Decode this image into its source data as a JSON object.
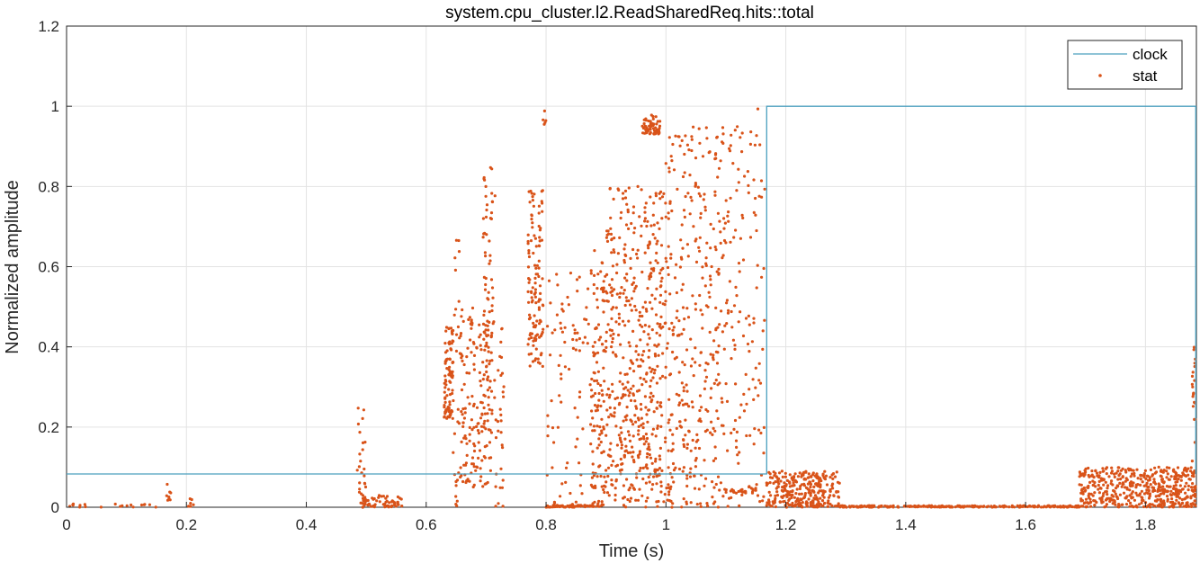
{
  "chart_data": {
    "type": "line+scatter",
    "title": "system.cpu_cluster.l2.ReadSharedReq.hits::total",
    "xlabel": "Time (s)",
    "ylabel": "Normalized amplitude",
    "xlim": [
      0,
      1.885
    ],
    "ylim": [
      0,
      1.2
    ],
    "xticks": [
      "0",
      "0.2",
      "0.4",
      "0.6",
      "0.8",
      "1",
      "1.2",
      "1.4",
      "1.6",
      "1.8"
    ],
    "xtick_values": [
      0,
      0.2,
      0.4,
      0.6,
      0.8,
      1.0,
      1.2,
      1.4,
      1.6,
      1.8
    ],
    "yticks": [
      "0",
      "0.2",
      "0.4",
      "0.6",
      "0.8",
      "1",
      "1.2"
    ],
    "ytick_values": [
      0,
      0.2,
      0.4,
      0.6,
      0.8,
      1.0,
      1.2
    ],
    "grid": true,
    "legend_position": "top-right",
    "series": [
      {
        "name": "clock",
        "style": "line",
        "color": "#4a9fbe",
        "x": [
          0,
          1.168,
          1.168,
          1.884,
          1.884
        ],
        "y": [
          0.083,
          0.083,
          1.0,
          1.0,
          0.083
        ]
      },
      {
        "name": "stat",
        "style": "dots",
        "color": "#d95319",
        "clusters": [
          {
            "x": [
              0.0,
              0.15
            ],
            "y": [
              0.0,
              0.008
            ],
            "n": 20
          },
          {
            "x": [
              0.165,
              0.175
            ],
            "y": [
              0.0,
              0.07
            ],
            "n": 8
          },
          {
            "x": [
              0.2,
              0.215
            ],
            "y": [
              0.0,
              0.04
            ],
            "n": 6
          },
          {
            "x": [
              0.485,
              0.5
            ],
            "y": [
              0.0,
              0.25
            ],
            "n": 25
          },
          {
            "x": [
              0.49,
              0.56
            ],
            "y": [
              0.0,
              0.03
            ],
            "n": 60
          },
          {
            "x": [
              0.63,
              0.645
            ],
            "y": [
              0.22,
              0.45
            ],
            "n": 90
          },
          {
            "x": [
              0.645,
              0.66
            ],
            "y": [
              0.0,
              0.68
            ],
            "n": 40
          },
          {
            "x": [
              0.66,
              0.71
            ],
            "y": [
              0.05,
              0.5
            ],
            "n": 140
          },
          {
            "x": [
              0.695,
              0.715
            ],
            "y": [
              0.15,
              0.85
            ],
            "n": 80
          },
          {
            "x": [
              0.715,
              0.73
            ],
            "y": [
              0.0,
              0.45
            ],
            "n": 30
          },
          {
            "x": [
              0.77,
              0.795
            ],
            "y": [
              0.35,
              0.79
            ],
            "n": 120
          },
          {
            "x": [
              0.795,
              0.8
            ],
            "y": [
              0.95,
              0.99
            ],
            "n": 5
          },
          {
            "x": [
              0.8,
              0.88
            ],
            "y": [
              0.0,
              0.6
            ],
            "n": 90
          },
          {
            "x": [
              0.8,
              0.88
            ],
            "y": [
              0.0,
              0.005
            ],
            "n": 60
          },
          {
            "x": [
              0.875,
              0.9
            ],
            "y": [
              0.0,
              0.65
            ],
            "n": 120
          },
          {
            "x": [
              0.9,
              1.0
            ],
            "y": [
              0.0,
              0.8
            ],
            "n": 500
          },
          {
            "x": [
              0.96,
              0.99
            ],
            "y": [
              0.93,
              0.98
            ],
            "n": 60
          },
          {
            "x": [
              1.0,
              1.09
            ],
            "y": [
              0.0,
              0.95
            ],
            "n": 320
          },
          {
            "x": [
              1.09,
              1.165
            ],
            "y": [
              0.0,
              1.0
            ],
            "n": 160
          },
          {
            "x": [
              1.1,
              1.15
            ],
            "y": [
              0.035,
              0.045
            ],
            "n": 20
          },
          {
            "x": [
              1.168,
              1.29
            ],
            "y": [
              0.0,
              0.09
            ],
            "n": 300
          },
          {
            "x": [
              1.29,
              1.69
            ],
            "y": [
              0.0,
              0.004
            ],
            "n": 250
          },
          {
            "x": [
              1.69,
              1.884
            ],
            "y": [
              0.0,
              0.1
            ],
            "n": 500
          },
          {
            "x": [
              1.878,
              1.884
            ],
            "y": [
              0.0,
              0.4
            ],
            "n": 30
          }
        ]
      }
    ]
  }
}
